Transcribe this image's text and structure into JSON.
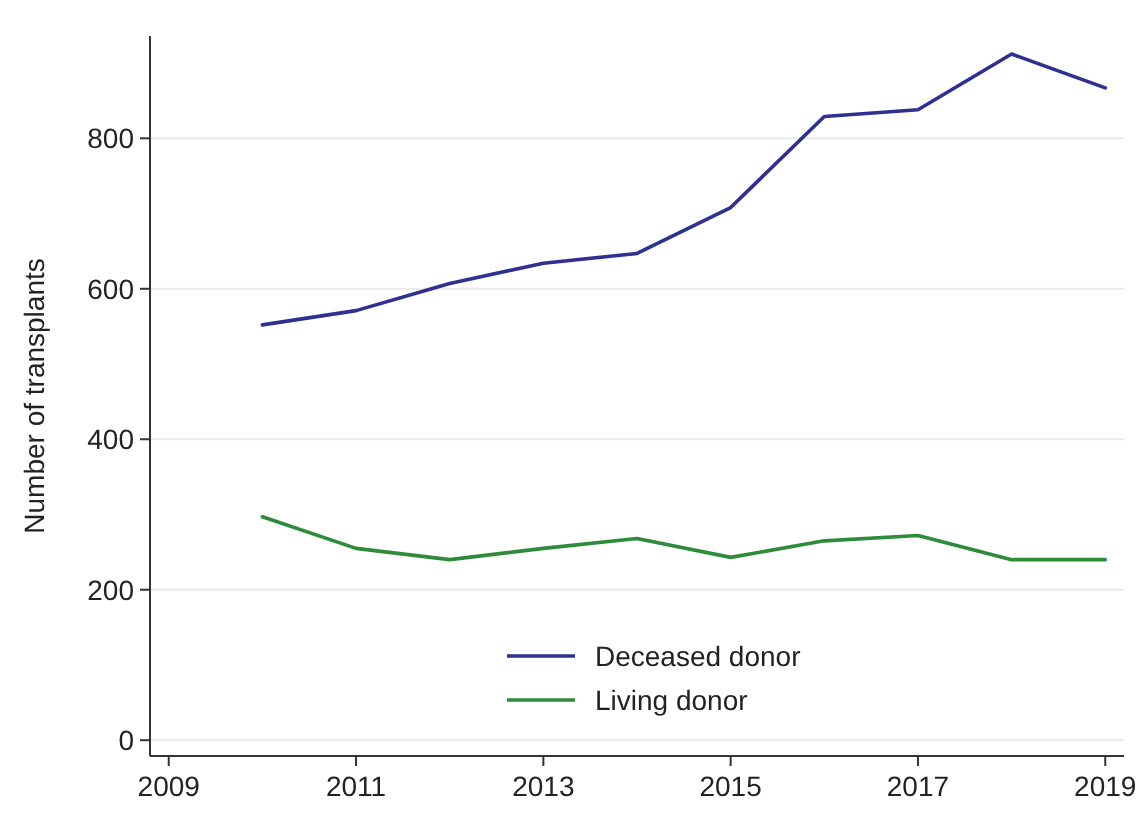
{
  "chart_data": {
    "type": "line",
    "ylabel": "Number of transplants",
    "x": [
      2010,
      2011,
      2012,
      2013,
      2014,
      2015,
      2016,
      2017,
      2018,
      2019
    ],
    "series": [
      {
        "name": "Deceased donor",
        "color": "#2e3192",
        "values": [
          552,
          571,
          607,
          634,
          647,
          708,
          829,
          838,
          912,
          867
        ]
      },
      {
        "name": "Living donor",
        "color": "#2e8b3a",
        "values": [
          297,
          255,
          240,
          255,
          268,
          243,
          265,
          272,
          240,
          240
        ]
      }
    ],
    "xlim": [
      2008.8,
      2019.2
    ],
    "xticks": [
      2009,
      2011,
      2013,
      2015,
      2017,
      2019
    ],
    "ylim": [
      -21,
      936
    ],
    "yticks": [
      0,
      200,
      400,
      600,
      800
    ],
    "grid": "y",
    "legend": "bottom",
    "marker": "none",
    "line_style": "solid"
  }
}
